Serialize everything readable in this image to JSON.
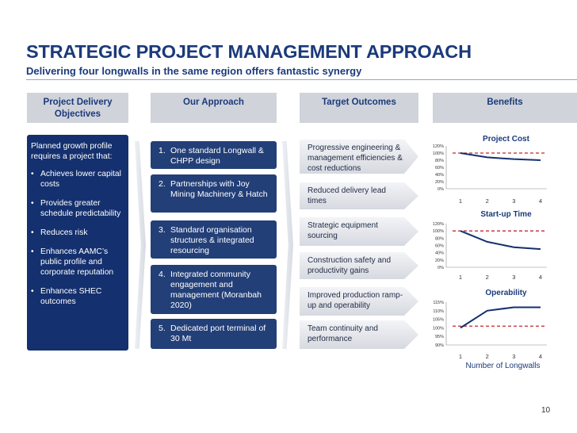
{
  "title": "STRATEGIC PROJECT MANAGEMENT APPROACH",
  "subtitle": "Delivering four longwalls in the same region offers fantastic synergy",
  "columns": {
    "objectives": "Project Delivery Objectives",
    "approach": "Our Approach",
    "outcomes": "Target Outcomes",
    "benefits": "Benefits"
  },
  "objectives": {
    "intro": "Planned growth profile requires a project that:",
    "bullets": [
      "Achieves lower capital costs",
      "Provides greater schedule predictability",
      "Reduces risk",
      "Enhances AAMC’s public profile and corporate reputation",
      "Enhances SHEC outcomes"
    ]
  },
  "approach": [
    {
      "num": "1.",
      "text": "One standard Longwall & CHPP design"
    },
    {
      "num": "2.",
      "text": "Partnerships with Joy Mining Machinery & Hatch"
    },
    {
      "num": "3.",
      "text": "Standard organisation structures & integrated resourcing"
    },
    {
      "num": "4.",
      "text": "Integrated community engagement and management (Moranbah 2020)"
    },
    {
      "num": "5.",
      "text": "Dedicated port terminal of 30 Mt"
    }
  ],
  "outcomes": [
    "Progressive engineering & management efficiencies & cost reductions",
    "Reduced delivery lead times",
    "Strategic equipment sourcing",
    "Construction safety and productivity gains",
    "Improved production ramp-up and operability",
    "Team continuity and performance"
  ],
  "chart_data": [
    {
      "type": "line",
      "title": "Project Cost",
      "x": [
        1,
        2,
        3,
        4
      ],
      "values": [
        100,
        88,
        83,
        80
      ],
      "reference": 100,
      "yticks": [
        "120%",
        "100%",
        "80%",
        "60%",
        "40%",
        "20%",
        "0%"
      ],
      "ylim": [
        0,
        120
      ]
    },
    {
      "type": "line",
      "title": "Start-up Time",
      "x": [
        1,
        2,
        3,
        4
      ],
      "values": [
        100,
        70,
        55,
        50
      ],
      "reference": 100,
      "yticks": [
        "120%",
        "100%",
        "80%",
        "60%",
        "40%",
        "20%",
        "0%"
      ],
      "ylim": [
        0,
        120
      ]
    },
    {
      "type": "line",
      "title": "Operability",
      "x": [
        1,
        2,
        3,
        4
      ],
      "values": [
        100,
        110,
        112,
        112
      ],
      "reference": 101,
      "yticks": [
        "115%",
        "110%",
        "105%",
        "100%",
        "95%",
        "90%"
      ],
      "ylim": [
        90,
        115
      ],
      "xlabel": "Number of Longwalls"
    }
  ],
  "colors": {
    "navy": "#14306e",
    "red_dash": "#c0282d"
  },
  "page_number": "10"
}
